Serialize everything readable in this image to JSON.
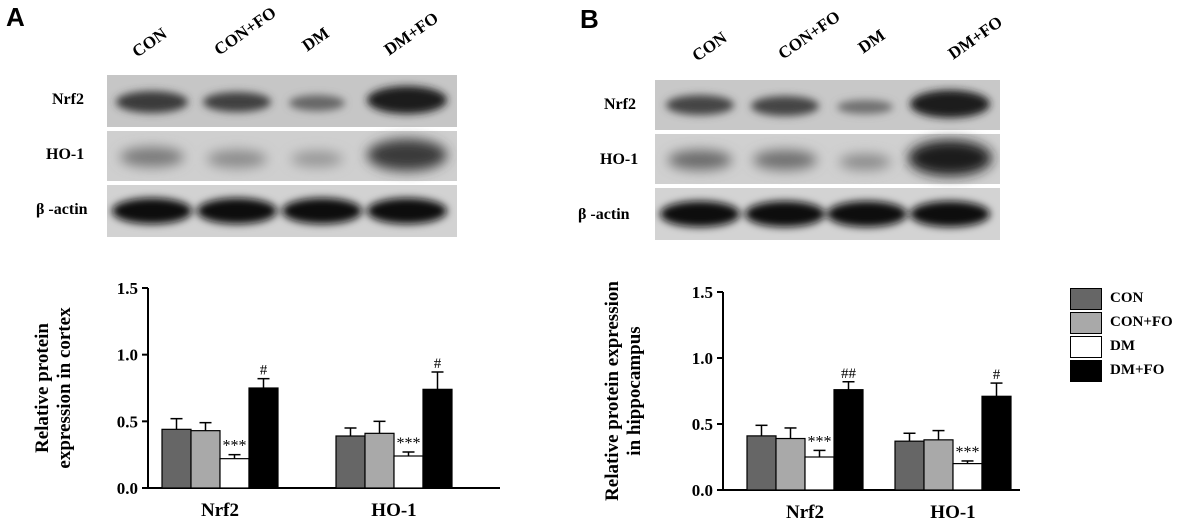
{
  "panels": [
    {
      "letter": "A",
      "lanes": [
        "CON",
        "CON+FO",
        "DM",
        "DM+FO"
      ],
      "blot_rows": [
        "Nrf2",
        "HO-1",
        "β -actin"
      ],
      "chart_data": {
        "type": "bar",
        "categories": [
          "Nrf2",
          "HO-1"
        ],
        "series": [
          {
            "name": "CON",
            "values": [
              0.44,
              0.39
            ],
            "errors": [
              0.08,
              0.06
            ]
          },
          {
            "name": "CON+FO",
            "values": [
              0.43,
              0.41
            ],
            "errors": [
              0.06,
              0.09
            ]
          },
          {
            "name": "DM",
            "values": [
              0.22,
              0.24
            ],
            "errors": [
              0.03,
              0.03
            ]
          },
          {
            "name": "DM+FO",
            "values": [
              0.75,
              0.74
            ],
            "errors": [
              0.07,
              0.13
            ]
          }
        ],
        "annotations": [
          {
            "category": "Nrf2",
            "series": "DM",
            "text": "***"
          },
          {
            "category": "Nrf2",
            "series": "DM+FO",
            "text": "#"
          },
          {
            "category": "HO-1",
            "series": "DM",
            "text": "***"
          },
          {
            "category": "HO-1",
            "series": "DM+FO",
            "text": "#"
          }
        ],
        "ylabel_line1": "Relative   protein",
        "ylabel_line2": "expression  in cortex",
        "ylim": [
          0,
          1.5
        ],
        "yticks": [
          "0.0",
          "0.5",
          "1.0",
          "1.5"
        ]
      }
    },
    {
      "letter": "B",
      "lanes": [
        "CON",
        "CON+FO",
        "DM",
        "DM+FO"
      ],
      "blot_rows": [
        "Nrf2",
        "HO-1",
        "β -actin"
      ],
      "chart_data": {
        "type": "bar",
        "categories": [
          "Nrf2",
          "HO-1"
        ],
        "series": [
          {
            "name": "CON",
            "values": [
              0.41,
              0.37
            ],
            "errors": [
              0.08,
              0.06
            ]
          },
          {
            "name": "CON+FO",
            "values": [
              0.39,
              0.38
            ],
            "errors": [
              0.08,
              0.07
            ]
          },
          {
            "name": "DM",
            "values": [
              0.25,
              0.2
            ],
            "errors": [
              0.05,
              0.02
            ]
          },
          {
            "name": "DM+FO",
            "values": [
              0.76,
              0.71
            ],
            "errors": [
              0.06,
              0.1
            ]
          }
        ],
        "annotations": [
          {
            "category": "Nrf2",
            "series": "DM",
            "text": "***"
          },
          {
            "category": "Nrf2",
            "series": "DM+FO",
            "text": "##"
          },
          {
            "category": "HO-1",
            "series": "DM",
            "text": "***"
          },
          {
            "category": "HO-1",
            "series": "DM+FO",
            "text": "#"
          }
        ],
        "ylabel_line1": "Relative  protein expression",
        "ylabel_line2": "in hippocampus",
        "ylim": [
          0,
          1.5
        ],
        "yticks": [
          "0.0",
          "0.5",
          "1.0",
          "1.5"
        ]
      }
    }
  ],
  "legend": {
    "items": [
      {
        "label": "CON",
        "color": "#666666"
      },
      {
        "label": "CON+FO",
        "color": "#a9a9a9"
      },
      {
        "label": "DM",
        "color": "#ffffff"
      },
      {
        "label": "DM+FO",
        "color": "#000000"
      }
    ]
  }
}
